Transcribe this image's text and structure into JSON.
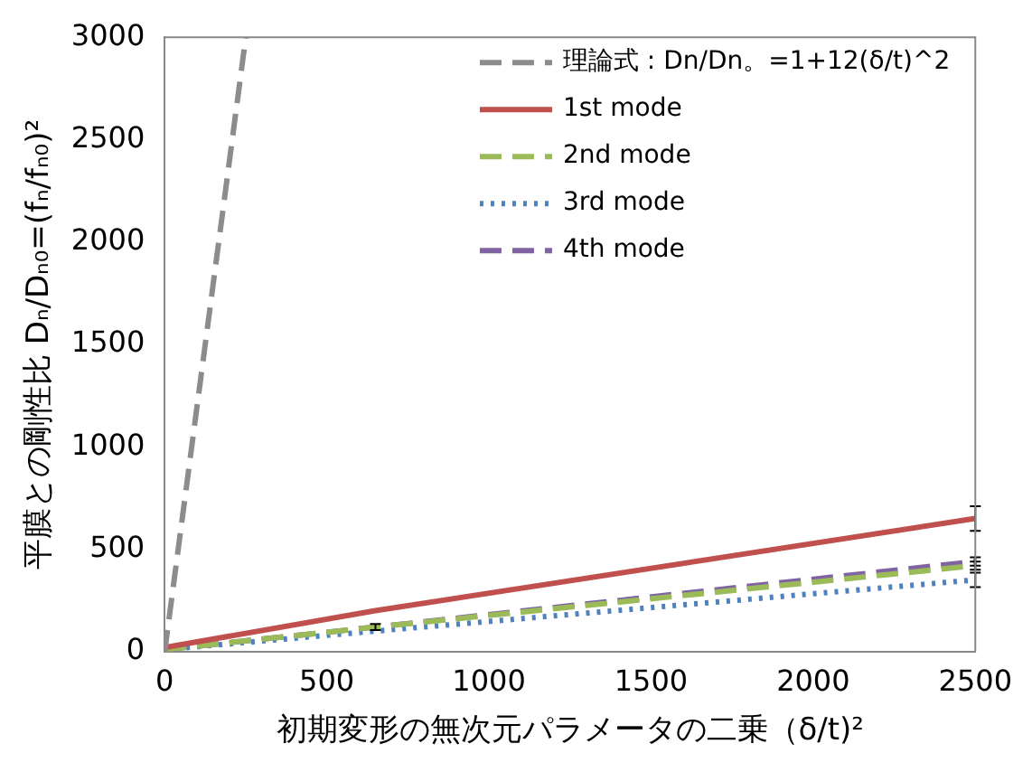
{
  "chart_data": {
    "type": "line",
    "xlabel": "初期変形の無次元パラメータの二乗（δ/t)²",
    "ylabel": "平膜との剛性比 Dₙ/Dₙ₀=(fₙ/fₙ₀)²",
    "xlim": [
      0,
      2500
    ],
    "xticks": [
      0,
      500,
      1000,
      1500,
      2000,
      2500
    ],
    "ylim": [
      0,
      3000
    ],
    "yticks": [
      0,
      500,
      1000,
      1500,
      2000,
      2500,
      3000
    ],
    "grid": false,
    "legend": "top right",
    "marker": "none",
    "series": [
      {
        "name": "理論式 : Dn/Dn。=1+12(δ/t)^2",
        "color": "#8c8c8c",
        "line_style": "dashed",
        "x": [
          0,
          250
        ],
        "values": [
          0,
          3000
        ]
      },
      {
        "name": "1st mode",
        "color": "#c0504d",
        "line_style": "solid",
        "x": [
          0,
          650,
          2500
        ],
        "values": [
          20,
          200,
          650
        ],
        "errors": [
          null,
          null,
          60
        ]
      },
      {
        "name": "2nd mode",
        "color": "#9bbb59",
        "line_style": "dashed",
        "x": [
          0,
          650,
          2500
        ],
        "values": [
          10,
          120,
          420
        ],
        "errors": [
          null,
          15,
          20
        ]
      },
      {
        "name": "3rd mode",
        "color": "#4f81bd",
        "line_style": "dotted",
        "x": [
          0,
          650,
          2500
        ],
        "values": [
          10,
          100,
          350
        ],
        "errors": [
          null,
          null,
          35
        ]
      },
      {
        "name": "4th mode",
        "color": "#8064a2",
        "line_style": "dashed",
        "x": [
          0,
          650,
          2500
        ],
        "values": [
          10,
          120,
          440
        ],
        "errors": [
          null,
          null,
          20
        ]
      }
    ]
  }
}
